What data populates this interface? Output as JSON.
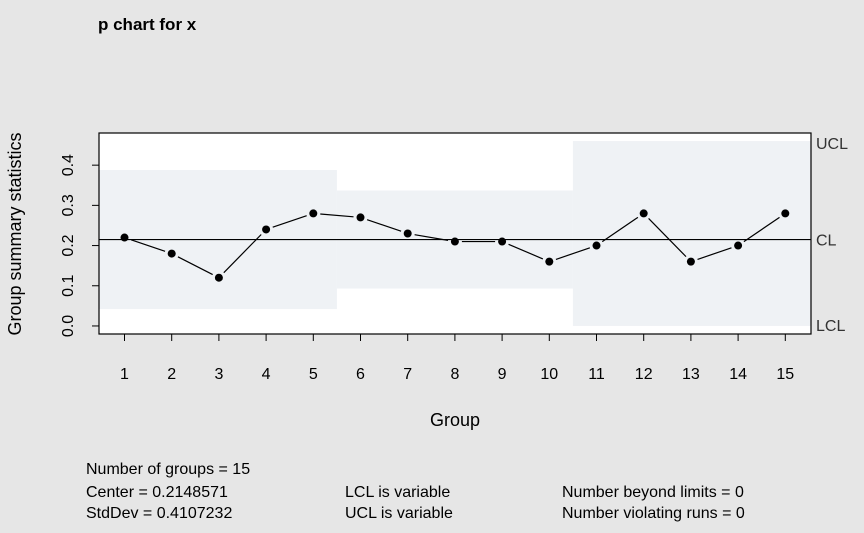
{
  "chart_data": {
    "type": "line",
    "title": "p chart for x",
    "xlabel": "Group",
    "ylabel": "Group summary statistics",
    "categories": [
      "1",
      "2",
      "3",
      "4",
      "5",
      "6",
      "7",
      "8",
      "9",
      "10",
      "11",
      "12",
      "13",
      "14",
      "15"
    ],
    "series": [
      {
        "values": [
          0.22,
          0.18,
          0.12,
          0.24,
          0.28,
          0.27,
          0.23,
          0.21,
          0.21,
          0.16,
          0.2,
          0.28,
          0.16,
          0.2,
          0.28
        ]
      }
    ],
    "center": 0.2148571,
    "limits": {
      "segments": [
        {
          "from": 1,
          "to": 5,
          "lcl": 0.042,
          "ucl": 0.388
        },
        {
          "from": 6,
          "to": 10,
          "lcl": 0.093,
          "ucl": 0.337
        },
        {
          "from": 11,
          "to": 15,
          "lcl": 0.0,
          "ucl": 0.46
        }
      ],
      "ucl_label": "UCL",
      "cl_label": "CL",
      "lcl_label": "LCL"
    },
    "ylim": [
      -0.02,
      0.48
    ],
    "yticks": [
      "0.0",
      "0.1",
      "0.2",
      "0.3",
      "0.4"
    ],
    "colors": {
      "background": "#e6e6e6",
      "plot_bg": "#ffffff",
      "limit_band": "#eff2f5",
      "line": "#000000",
      "axis_label_right": "#333333"
    }
  },
  "stats": {
    "groups": "Number of groups = 15",
    "center": "Center = 0.2148571",
    "stddev": "StdDev = 0.4107232",
    "lcl": "LCL is variable",
    "ucl": "UCL is variable",
    "beyond": "Number beyond limits = 0",
    "violating": "Number violating runs = 0"
  }
}
